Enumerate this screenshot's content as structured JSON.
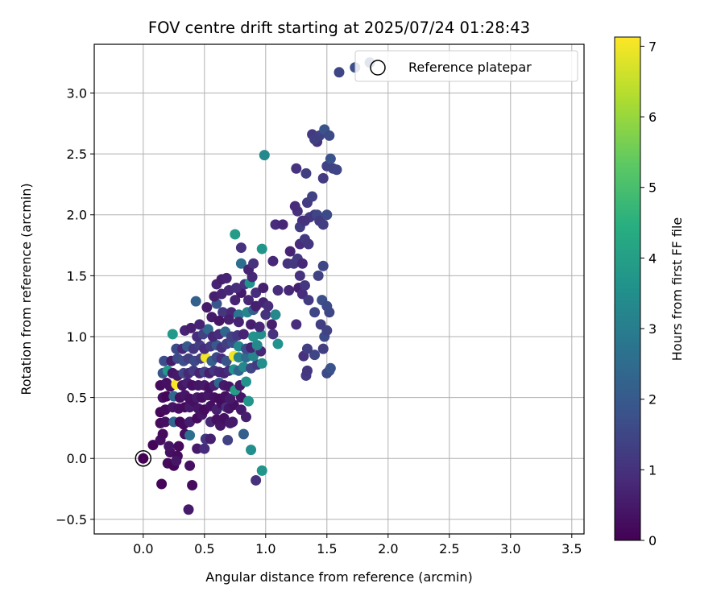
{
  "chart_data": {
    "type": "scatter",
    "title": "FOV centre drift starting at 2025/07/24 01:28:43",
    "xlabel": "Angular distance from reference (arcmin)",
    "ylabel": "Rotation from reference (arcmin)",
    "xlim": [
      -0.4,
      3.6
    ],
    "ylim": [
      -0.62,
      3.4
    ],
    "xticks": [
      0.0,
      0.5,
      1.0,
      1.5,
      2.0,
      2.5,
      3.0,
      3.5
    ],
    "xtick_labels": [
      "0.0",
      "0.5",
      "1.0",
      "1.5",
      "2.0",
      "2.5",
      "3.0",
      "3.5"
    ],
    "yticks": [
      -0.5,
      0.0,
      0.5,
      1.0,
      1.5,
      2.0,
      2.5,
      3.0
    ],
    "ytick_labels": [
      "−0.5",
      "0.0",
      "0.5",
      "1.0",
      "1.5",
      "2.0",
      "2.5",
      "3.0"
    ],
    "grid": true,
    "legend": {
      "placement": "top-right",
      "entries": [
        "Reference platepar"
      ]
    },
    "colorbar": {
      "label": "Hours from first FF file",
      "colormap": "viridis",
      "range": [
        0,
        7.13
      ],
      "ticks": [
        0,
        1,
        2,
        3,
        4,
        5,
        6,
        7
      ],
      "tick_labels": [
        "0",
        "1",
        "2",
        "3",
        "4",
        "5",
        "6",
        "7"
      ]
    },
    "reference_point": {
      "x": 0.0,
      "y": 0.0
    },
    "points": [
      [
        0.15,
        -0.21,
        0.1
      ],
      [
        0.37,
        -0.42,
        0.5
      ],
      [
        0.4,
        -0.22,
        0.2
      ],
      [
        0.2,
        -0.04,
        0.2
      ],
      [
        0.25,
        -0.06,
        0.1
      ],
      [
        0.38,
        -0.06,
        0.3
      ],
      [
        0.22,
        0.05,
        0.3
      ],
      [
        0.28,
        0.02,
        0.2
      ],
      [
        0.27,
        -0.02,
        0.4
      ],
      [
        0.08,
        0.11,
        0.1
      ],
      [
        0.14,
        0.15,
        0.3
      ],
      [
        0.16,
        0.2,
        0.2
      ],
      [
        0.21,
        0.1,
        0.4
      ],
      [
        0.29,
        0.1,
        0.2
      ],
      [
        0.34,
        0.2,
        0.3
      ],
      [
        0.38,
        0.19,
        2.6
      ],
      [
        0.44,
        0.08,
        0.5
      ],
      [
        0.5,
        0.08,
        0.9
      ],
      [
        0.51,
        0.16,
        1.1
      ],
      [
        0.14,
        0.29,
        0.2
      ],
      [
        0.18,
        0.3,
        0.3
      ],
      [
        0.25,
        0.3,
        2.3
      ],
      [
        0.3,
        0.3,
        0.1
      ],
      [
        0.33,
        0.28,
        0.2
      ],
      [
        0.38,
        0.3,
        0.6
      ],
      [
        0.44,
        0.33,
        0.2
      ],
      [
        0.48,
        0.36,
        0.4
      ],
      [
        0.55,
        0.3,
        0.8
      ],
      [
        0.6,
        0.32,
        0.3
      ],
      [
        0.63,
        0.27,
        0.4
      ],
      [
        0.66,
        0.33,
        0.3
      ],
      [
        0.71,
        0.29,
        0.5
      ],
      [
        0.73,
        0.3,
        0.5
      ],
      [
        0.14,
        0.38,
        0.1
      ],
      [
        0.18,
        0.4,
        0.2
      ],
      [
        0.24,
        0.42,
        0.4
      ],
      [
        0.29,
        0.41,
        0.3
      ],
      [
        0.34,
        0.42,
        0.2
      ],
      [
        0.38,
        0.42,
        0.5
      ],
      [
        0.41,
        0.47,
        0.3
      ],
      [
        0.45,
        0.41,
        0.4
      ],
      [
        0.5,
        0.4,
        0.2
      ],
      [
        0.55,
        0.43,
        0.3
      ],
      [
        0.6,
        0.4,
        0.6
      ],
      [
        0.64,
        0.45,
        0.3
      ],
      [
        0.68,
        0.42,
        1.0
      ],
      [
        0.7,
        0.41,
        0.4
      ],
      [
        0.74,
        0.44,
        0.3
      ],
      [
        0.8,
        0.4,
        0.5
      ],
      [
        0.84,
        0.34,
        0.6
      ],
      [
        0.16,
        0.5,
        0.3
      ],
      [
        0.19,
        0.51,
        0.1
      ],
      [
        0.25,
        0.51,
        2.4
      ],
      [
        0.3,
        0.5,
        0.3
      ],
      [
        0.34,
        0.52,
        0.4
      ],
      [
        0.38,
        0.49,
        0.3
      ],
      [
        0.44,
        0.5,
        0.5
      ],
      [
        0.48,
        0.5,
        0.3
      ],
      [
        0.53,
        0.52,
        0.4
      ],
      [
        0.58,
        0.5,
        0.3
      ],
      [
        0.62,
        0.49,
        0.2
      ],
      [
        0.67,
        0.51,
        0.3
      ],
      [
        0.71,
        0.49,
        0.5
      ],
      [
        0.76,
        0.55,
        0.6
      ],
      [
        0.8,
        0.5,
        0.4
      ],
      [
        0.86,
        0.47,
        3.7
      ],
      [
        0.14,
        0.6,
        0.2
      ],
      [
        0.19,
        0.62,
        0.3
      ],
      [
        0.22,
        0.59,
        0.3
      ],
      [
        0.27,
        0.61,
        7.1
      ],
      [
        0.32,
        0.6,
        0.4
      ],
      [
        0.36,
        0.62,
        0.6
      ],
      [
        0.4,
        0.6,
        0.3
      ],
      [
        0.45,
        0.6,
        0.4
      ],
      [
        0.5,
        0.6,
        0.5
      ],
      [
        0.54,
        0.58,
        0.3
      ],
      [
        0.58,
        0.6,
        0.6
      ],
      [
        0.62,
        0.62,
        2.3
      ],
      [
        0.66,
        0.6,
        0.5
      ],
      [
        0.7,
        0.59,
        0.4
      ],
      [
        0.75,
        0.56,
        4.0
      ],
      [
        0.79,
        0.6,
        0.5
      ],
      [
        0.84,
        0.63,
        3.6
      ],
      [
        0.16,
        0.7,
        1.9
      ],
      [
        0.2,
        0.72,
        3.8
      ],
      [
        0.24,
        0.7,
        0.4
      ],
      [
        0.28,
        0.68,
        0.5
      ],
      [
        0.33,
        0.7,
        1.5
      ],
      [
        0.37,
        0.7,
        0.8
      ],
      [
        0.41,
        0.72,
        1.2
      ],
      [
        0.46,
        0.7,
        0.7
      ],
      [
        0.5,
        0.71,
        1.4
      ],
      [
        0.54,
        0.7,
        0.6
      ],
      [
        0.58,
        0.72,
        1.1
      ],
      [
        0.62,
        0.71,
        0.8
      ],
      [
        0.66,
        0.7,
        0.7
      ],
      [
        0.7,
        0.72,
        0.9
      ],
      [
        0.74,
        0.73,
        3.6
      ],
      [
        0.78,
        0.72,
        2.3
      ],
      [
        0.82,
        0.75,
        3.3
      ],
      [
        0.88,
        0.74,
        1.5
      ],
      [
        0.93,
        0.77,
        1.2
      ],
      [
        0.97,
        0.78,
        3.5
      ],
      [
        0.17,
        0.8,
        1.7
      ],
      [
        0.23,
        0.8,
        0.5
      ],
      [
        0.28,
        0.82,
        1.6
      ],
      [
        0.33,
        0.8,
        1.7
      ],
      [
        0.37,
        0.82,
        1.3
      ],
      [
        0.42,
        0.8,
        1.6
      ],
      [
        0.47,
        0.82,
        1.3
      ],
      [
        0.51,
        0.83,
        7.0
      ],
      [
        0.56,
        0.8,
        2.2
      ],
      [
        0.6,
        0.83,
        1.6
      ],
      [
        0.64,
        0.82,
        0.9
      ],
      [
        0.68,
        0.8,
        1.8
      ],
      [
        0.74,
        0.84,
        7.0
      ],
      [
        0.78,
        0.83,
        3.2
      ],
      [
        0.84,
        0.83,
        2.5
      ],
      [
        0.9,
        0.84,
        3.2
      ],
      [
        0.96,
        0.88,
        0.8
      ],
      [
        0.27,
        0.9,
        1.6
      ],
      [
        0.32,
        0.9,
        0.8
      ],
      [
        0.36,
        0.92,
        2.0
      ],
      [
        0.41,
        0.9,
        1.1
      ],
      [
        0.46,
        0.93,
        1.3
      ],
      [
        0.5,
        0.9,
        0.9
      ],
      [
        0.55,
        0.92,
        1.2
      ],
      [
        0.6,
        0.93,
        2.0
      ],
      [
        0.64,
        0.91,
        1.0
      ],
      [
        0.68,
        0.94,
        1.3
      ],
      [
        0.73,
        0.95,
        1.7
      ],
      [
        0.78,
        0.92,
        3.3
      ],
      [
        0.84,
        0.9,
        1.7
      ],
      [
        0.88,
        0.91,
        0.7
      ],
      [
        0.93,
        0.93,
        3.3
      ],
      [
        1.1,
        0.94,
        3.6
      ],
      [
        0.24,
        1.02,
        3.8
      ],
      [
        0.34,
        1.05,
        0.7
      ],
      [
        0.39,
        1.07,
        0.6
      ],
      [
        0.44,
        1.0,
        0.9
      ],
      [
        0.49,
        1.02,
        1.4
      ],
      [
        0.53,
        1.06,
        2.4
      ],
      [
        0.57,
        1.0,
        0.8
      ],
      [
        0.62,
        1.02,
        0.9
      ],
      [
        0.67,
        1.04,
        2.3
      ],
      [
        0.72,
        1.0,
        1.4
      ],
      [
        0.77,
        1.01,
        1.1
      ],
      [
        0.82,
        1.02,
        0.7
      ],
      [
        0.9,
        1.0,
        3.6
      ],
      [
        0.96,
        1.02,
        3.5
      ],
      [
        1.06,
        1.02,
        1.0
      ],
      [
        0.43,
        1.29,
        2.2
      ],
      [
        0.52,
        1.24,
        0.5
      ],
      [
        0.6,
        1.27,
        1.9
      ],
      [
        0.65,
        1.2,
        1.1
      ],
      [
        0.72,
        1.2,
        0.8
      ],
      [
        0.78,
        1.18,
        2.8
      ],
      [
        0.85,
        1.2,
        3.2
      ],
      [
        0.9,
        1.22,
        2.1
      ],
      [
        1.0,
        1.18,
        1.0
      ],
      [
        1.08,
        1.18,
        3.3
      ],
      [
        1.25,
        1.1,
        0.9
      ],
      [
        0.46,
        1.1,
        0.7
      ],
      [
        0.56,
        1.16,
        0.5
      ],
      [
        0.62,
        1.13,
        0.4
      ],
      [
        0.7,
        1.14,
        0.6
      ],
      [
        0.78,
        1.12,
        0.7
      ],
      [
        0.88,
        1.1,
        0.6
      ],
      [
        0.95,
        1.08,
        0.8
      ],
      [
        1.05,
        1.1,
        0.6
      ],
      [
        0.58,
        1.33,
        0.6
      ],
      [
        0.64,
        1.35,
        0.7
      ],
      [
        0.7,
        1.38,
        0.8
      ],
      [
        0.75,
        1.3,
        0.7
      ],
      [
        0.8,
        1.36,
        0.5
      ],
      [
        0.86,
        1.3,
        0.8
      ],
      [
        0.92,
        1.25,
        0.6
      ],
      [
        0.98,
        1.28,
        0.7
      ],
      [
        1.02,
        1.25,
        0.9
      ],
      [
        0.6,
        1.43,
        0.7
      ],
      [
        0.64,
        1.47,
        0.6
      ],
      [
        0.68,
        1.48,
        0.7
      ],
      [
        0.76,
        1.4,
        0.9
      ],
      [
        0.83,
        1.43,
        1.0
      ],
      [
        0.87,
        1.44,
        3.6
      ],
      [
        0.89,
        1.49,
        0.8
      ],
      [
        0.92,
        1.36,
        0.9
      ],
      [
        0.98,
        1.4,
        0.6
      ],
      [
        1.1,
        1.38,
        0.9
      ],
      [
        1.19,
        1.38,
        0.8
      ],
      [
        1.28,
        1.5,
        1.0
      ],
      [
        1.27,
        1.4,
        0.6
      ],
      [
        1.3,
        1.35,
        0.9
      ],
      [
        1.32,
        1.42,
        1.1
      ],
      [
        0.75,
        1.84,
        3.9
      ],
      [
        0.8,
        1.73,
        1.0
      ],
      [
        0.8,
        1.6,
        2.6
      ],
      [
        0.86,
        1.55,
        0.7
      ],
      [
        0.9,
        1.6,
        1.0
      ],
      [
        0.97,
        1.72,
        3.7
      ],
      [
        1.06,
        1.62,
        0.8
      ],
      [
        1.18,
        1.6,
        1.0
      ],
      [
        1.2,
        1.7,
        0.7
      ],
      [
        1.23,
        1.6,
        1.1
      ],
      [
        1.26,
        1.64,
        1.2
      ],
      [
        1.3,
        1.6,
        0.8
      ],
      [
        1.28,
        1.76,
        0.9
      ],
      [
        1.32,
        1.8,
        1.2
      ],
      [
        1.35,
        1.76,
        1.1
      ],
      [
        1.26,
        2.03,
        1.0
      ],
      [
        1.3,
        1.95,
        0.9
      ],
      [
        1.36,
        1.98,
        1.2
      ],
      [
        1.4,
        2.0,
        1.1
      ],
      [
        1.08,
        1.92,
        0.9
      ],
      [
        1.14,
        1.92,
        0.8
      ],
      [
        1.24,
        2.07,
        0.9
      ],
      [
        1.28,
        1.9,
        1.3
      ],
      [
        1.32,
        1.95,
        1.0
      ],
      [
        1.34,
        2.1,
        1.2
      ],
      [
        1.38,
        2.15,
        1.4
      ],
      [
        1.42,
        2.0,
        1.5
      ],
      [
        1.44,
        1.95,
        1.2
      ],
      [
        1.47,
        1.92,
        1.3
      ],
      [
        1.5,
        2.0,
        1.6
      ],
      [
        1.25,
        2.38,
        1.0
      ],
      [
        1.33,
        2.34,
        1.3
      ],
      [
        1.47,
        2.3,
        1.2
      ],
      [
        1.5,
        2.4,
        1.4
      ],
      [
        1.53,
        2.46,
        1.8
      ],
      [
        1.55,
        2.38,
        1.4
      ],
      [
        1.58,
        2.37,
        1.5
      ],
      [
        0.99,
        2.49,
        3.3
      ],
      [
        1.38,
        2.66,
        1.2
      ],
      [
        1.42,
        2.6,
        1.0
      ],
      [
        1.44,
        2.65,
        1.4
      ],
      [
        1.48,
        2.7,
        1.8
      ],
      [
        1.52,
        2.65,
        1.6
      ],
      [
        1.4,
        2.62,
        1.3
      ],
      [
        1.6,
        3.17,
        1.5
      ],
      [
        1.73,
        3.21,
        1.7
      ],
      [
        1.85,
        3.25,
        1.9
      ],
      [
        1.35,
        1.3,
        1.2
      ],
      [
        1.4,
        1.2,
        1.5
      ],
      [
        1.45,
        1.1,
        1.3
      ],
      [
        1.48,
        1.0,
        1.6
      ],
      [
        1.5,
        1.05,
        1.4
      ],
      [
        1.52,
        1.2,
        1.5
      ],
      [
        1.46,
        1.3,
        1.7
      ],
      [
        1.43,
        1.5,
        1.4
      ],
      [
        1.47,
        1.58,
        1.5
      ],
      [
        1.5,
        1.25,
        1.6
      ],
      [
        1.52,
        0.72,
        1.7
      ],
      [
        1.5,
        0.7,
        1.6
      ],
      [
        1.53,
        0.74,
        1.8
      ],
      [
        1.33,
        0.68,
        1.2
      ],
      [
        1.34,
        0.72,
        1.1
      ],
      [
        1.4,
        0.85,
        1.5
      ],
      [
        1.47,
        0.9,
        1.3
      ],
      [
        1.31,
        0.84,
        1.0
      ],
      [
        1.34,
        0.9,
        1.3
      ],
      [
        0.92,
        -0.18,
        1.0
      ],
      [
        0.97,
        -0.1,
        3.7
      ],
      [
        0.88,
        0.07,
        3.5
      ],
      [
        0.82,
        0.2,
        2.2
      ],
      [
        0.69,
        0.15,
        1.4
      ],
      [
        0.55,
        0.16,
        0.6
      ]
    ]
  }
}
